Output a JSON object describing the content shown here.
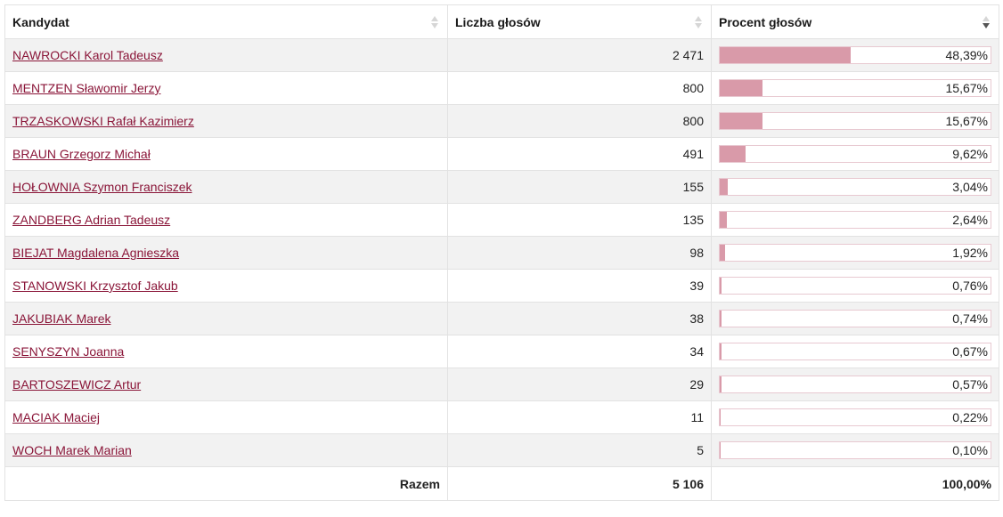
{
  "headers": {
    "candidate": "Kandydat",
    "votes": "Liczba głosów",
    "percent": "Procent głosów"
  },
  "sort": {
    "column": "percent",
    "direction": "desc"
  },
  "rows": [
    {
      "name": "NAWROCKI Karol Tadeusz",
      "votes": "2 471",
      "percent_label": "48,39%",
      "percent": 48.39
    },
    {
      "name": "MENTZEN Sławomir Jerzy",
      "votes": "800",
      "percent_label": "15,67%",
      "percent": 15.67
    },
    {
      "name": "TRZASKOWSKI Rafał Kazimierz",
      "votes": "800",
      "percent_label": "15,67%",
      "percent": 15.67
    },
    {
      "name": "BRAUN Grzegorz Michał",
      "votes": "491",
      "percent_label": "9,62%",
      "percent": 9.62
    },
    {
      "name": "HOŁOWNIA Szymon Franciszek",
      "votes": "155",
      "percent_label": "3,04%",
      "percent": 3.04
    },
    {
      "name": "ZANDBERG Adrian Tadeusz",
      "votes": "135",
      "percent_label": "2,64%",
      "percent": 2.64
    },
    {
      "name": "BIEJAT Magdalena Agnieszka",
      "votes": "98",
      "percent_label": "1,92%",
      "percent": 1.92
    },
    {
      "name": "STANOWSKI Krzysztof Jakub",
      "votes": "39",
      "percent_label": "0,76%",
      "percent": 0.76
    },
    {
      "name": "JAKUBIAK Marek",
      "votes": "38",
      "percent_label": "0,74%",
      "percent": 0.74
    },
    {
      "name": "SENYSZYN Joanna",
      "votes": "34",
      "percent_label": "0,67%",
      "percent": 0.67
    },
    {
      "name": "BARTOSZEWICZ Artur",
      "votes": "29",
      "percent_label": "0,57%",
      "percent": 0.57
    },
    {
      "name": "MACIAK Maciej",
      "votes": "11",
      "percent_label": "0,22%",
      "percent": 0.22
    },
    {
      "name": "WOCH Marek Marian",
      "votes": "5",
      "percent_label": "0,10%",
      "percent": 0.1
    }
  ],
  "footer": {
    "label": "Razem",
    "votes": "5 106",
    "percent": "100,00%"
  },
  "colors": {
    "link": "#8a1538",
    "bar_fill": "#d99aa9",
    "bar_border": "#e8c9d1"
  }
}
